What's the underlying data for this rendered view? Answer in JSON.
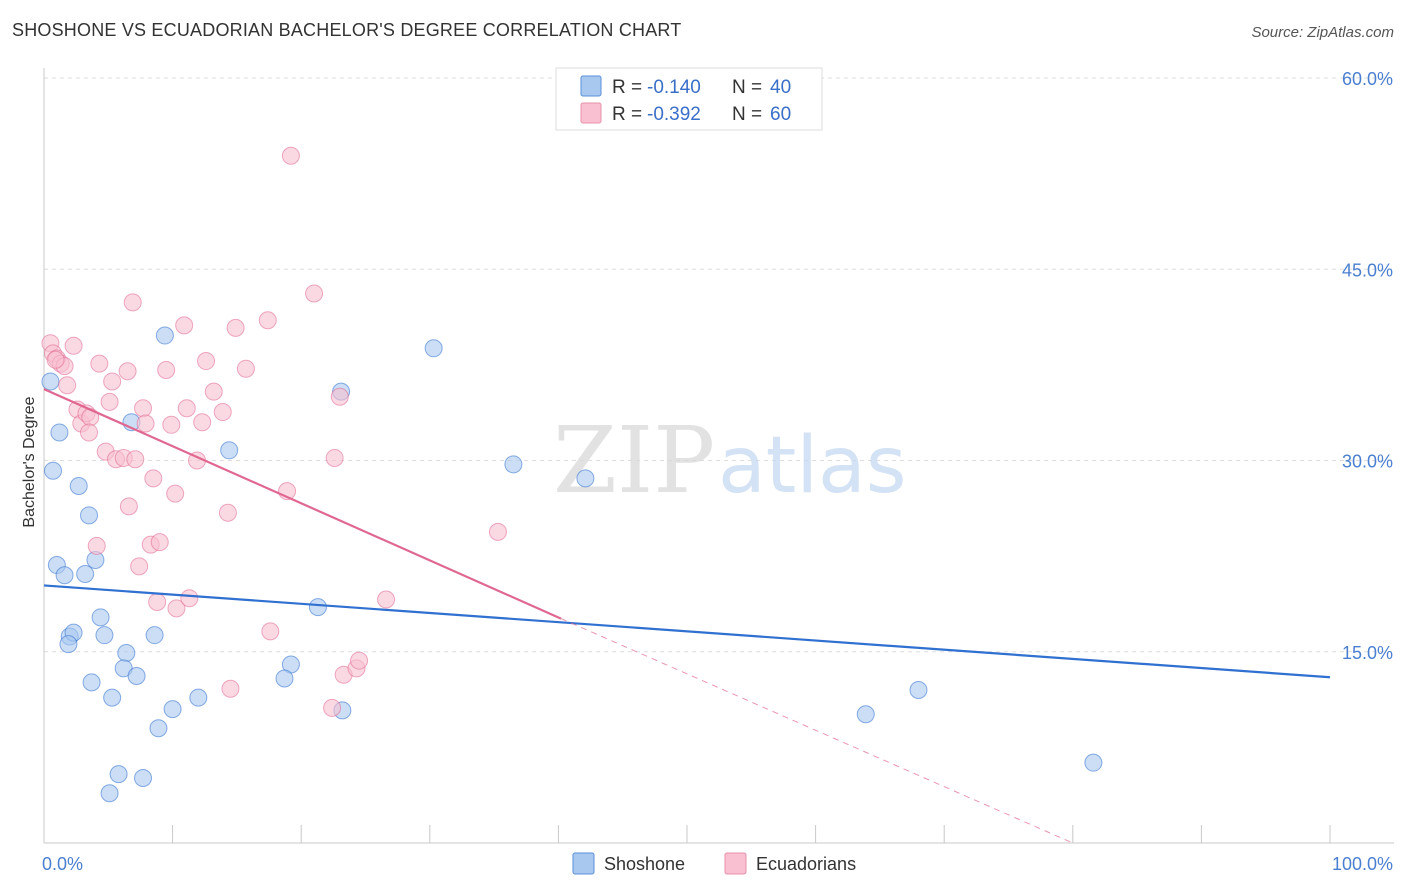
{
  "header": {
    "title": "SHOSHONE VS ECUADORIAN BACHELOR'S DEGREE CORRELATION CHART",
    "source": "Source: ZipAtlas.com"
  },
  "legend": {
    "r_label": "R =",
    "n_label": "N =",
    "rows": [
      {
        "r": "-0.140",
        "n": "40",
        "color": "#a8c8f0",
        "border": "#5b8fd8"
      },
      {
        "r": "-0.392",
        "n": "60",
        "color": "#f8c0d0",
        "border": "#e890aa"
      }
    ]
  },
  "watermark": {
    "zip": "ZIP",
    "atlas": "atlas"
  },
  "bottom_legend": [
    "Shoshone",
    "Ecuadorians"
  ],
  "chart_data": {
    "type": "scatter",
    "title": "SHOSHONE VS ECUADORIAN BACHELOR'S DEGREE CORRELATION CHART",
    "xlabel": "",
    "ylabel": "Bachelor's Degree",
    "xlim": [
      0,
      100
    ],
    "ylim": [
      0,
      60
    ],
    "x_tick_labels": [
      "0.0%",
      "100.0%"
    ],
    "y_ticks": [
      15,
      30,
      45,
      60
    ],
    "y_tick_labels": [
      "15.0%",
      "30.0%",
      "45.0%",
      "60.0%"
    ],
    "colors": {
      "shoshone": "#3070d0",
      "ecuadorians": "#e06890"
    },
    "series": [
      {
        "name": "Shoshone",
        "color": "#3070d0",
        "fill": "#a8c8f0",
        "points": [
          [
            0.5,
            36.2
          ],
          [
            1.2,
            32.2
          ],
          [
            0.7,
            29.2
          ],
          [
            2.7,
            28.0
          ],
          [
            3.5,
            25.7
          ],
          [
            1.0,
            21.8
          ],
          [
            1.6,
            21.0
          ],
          [
            4.0,
            22.2
          ],
          [
            3.2,
            21.1
          ],
          [
            2.0,
            16.2
          ],
          [
            2.3,
            16.5
          ],
          [
            1.9,
            15.6
          ],
          [
            4.4,
            17.7
          ],
          [
            4.7,
            16.3
          ],
          [
            6.4,
            14.9
          ],
          [
            8.6,
            16.3
          ],
          [
            6.2,
            13.7
          ],
          [
            7.2,
            13.1
          ],
          [
            3.7,
            12.6
          ],
          [
            5.3,
            11.4
          ],
          [
            10.0,
            10.5
          ],
          [
            12.0,
            11.4
          ],
          [
            8.9,
            9.0
          ],
          [
            5.8,
            5.4
          ],
          [
            7.7,
            5.1
          ],
          [
            5.1,
            3.9
          ],
          [
            9.4,
            39.8
          ],
          [
            6.8,
            33.0
          ],
          [
            14.4,
            30.8
          ],
          [
            23.1,
            35.4
          ],
          [
            19.2,
            14.0
          ],
          [
            18.7,
            12.9
          ],
          [
            21.3,
            18.5
          ],
          [
            23.2,
            10.4
          ],
          [
            30.3,
            38.8
          ],
          [
            36.5,
            29.7
          ],
          [
            42.1,
            28.6
          ],
          [
            63.9,
            10.1
          ],
          [
            68.0,
            12.0
          ],
          [
            81.6,
            6.3
          ]
        ]
      },
      {
        "name": "Ecuadorians",
        "color": "#e06890",
        "fill": "#f8c0d0",
        "points": [
          [
            0.5,
            39.2
          ],
          [
            0.7,
            38.4
          ],
          [
            1.0,
            38.0
          ],
          [
            1.3,
            37.6
          ],
          [
            1.6,
            37.4
          ],
          [
            2.3,
            39.0
          ],
          [
            1.8,
            35.9
          ],
          [
            2.6,
            34.0
          ],
          [
            2.9,
            32.9
          ],
          [
            3.3,
            33.7
          ],
          [
            3.6,
            33.4
          ],
          [
            3.5,
            32.2
          ],
          [
            4.3,
            37.6
          ],
          [
            5.1,
            34.6
          ],
          [
            5.3,
            36.2
          ],
          [
            4.8,
            30.7
          ],
          [
            5.6,
            30.1
          ],
          [
            6.2,
            30.2
          ],
          [
            6.5,
            37.0
          ],
          [
            7.1,
            30.1
          ],
          [
            7.7,
            34.1
          ],
          [
            7.9,
            32.9
          ],
          [
            8.5,
            28.6
          ],
          [
            9.5,
            37.1
          ],
          [
            9.9,
            32.8
          ],
          [
            10.2,
            27.4
          ],
          [
            10.9,
            40.6
          ],
          [
            11.1,
            34.1
          ],
          [
            11.9,
            30.0
          ],
          [
            12.3,
            33.0
          ],
          [
            12.6,
            37.8
          ],
          [
            13.2,
            35.4
          ],
          [
            13.9,
            33.8
          ],
          [
            14.3,
            25.9
          ],
          [
            14.9,
            40.4
          ],
          [
            15.7,
            37.2
          ],
          [
            17.4,
            41.0
          ],
          [
            18.9,
            27.6
          ],
          [
            19.2,
            53.9
          ],
          [
            21.0,
            43.1
          ],
          [
            22.6,
            30.2
          ],
          [
            23.0,
            35.0
          ],
          [
            6.9,
            42.4
          ],
          [
            6.6,
            26.4
          ],
          [
            4.1,
            23.3
          ],
          [
            7.4,
            21.7
          ],
          [
            8.3,
            23.4
          ],
          [
            9.0,
            23.6
          ],
          [
            8.8,
            18.9
          ],
          [
            10.3,
            18.4
          ],
          [
            11.3,
            19.2
          ],
          [
            14.5,
            12.1
          ],
          [
            17.6,
            16.6
          ],
          [
            22.4,
            10.6
          ],
          [
            23.3,
            13.2
          ],
          [
            24.3,
            13.7
          ],
          [
            24.5,
            14.3
          ],
          [
            26.6,
            19.1
          ],
          [
            35.3,
            24.4
          ],
          [
            0.9,
            37.9
          ]
        ]
      }
    ],
    "trendlines": [
      {
        "series": "Shoshone",
        "x": [
          0,
          100
        ],
        "y": [
          20.2,
          13.0
        ],
        "style": "solid"
      },
      {
        "series": "Ecuadorians",
        "x": [
          0,
          40.2
        ],
        "y": [
          35.6,
          17.6
        ],
        "style": "solid"
      },
      {
        "series": "Ecuadorians",
        "x": [
          40.2,
          80.0
        ],
        "y": [
          17.6,
          0.0
        ],
        "style": "dashed"
      }
    ]
  }
}
